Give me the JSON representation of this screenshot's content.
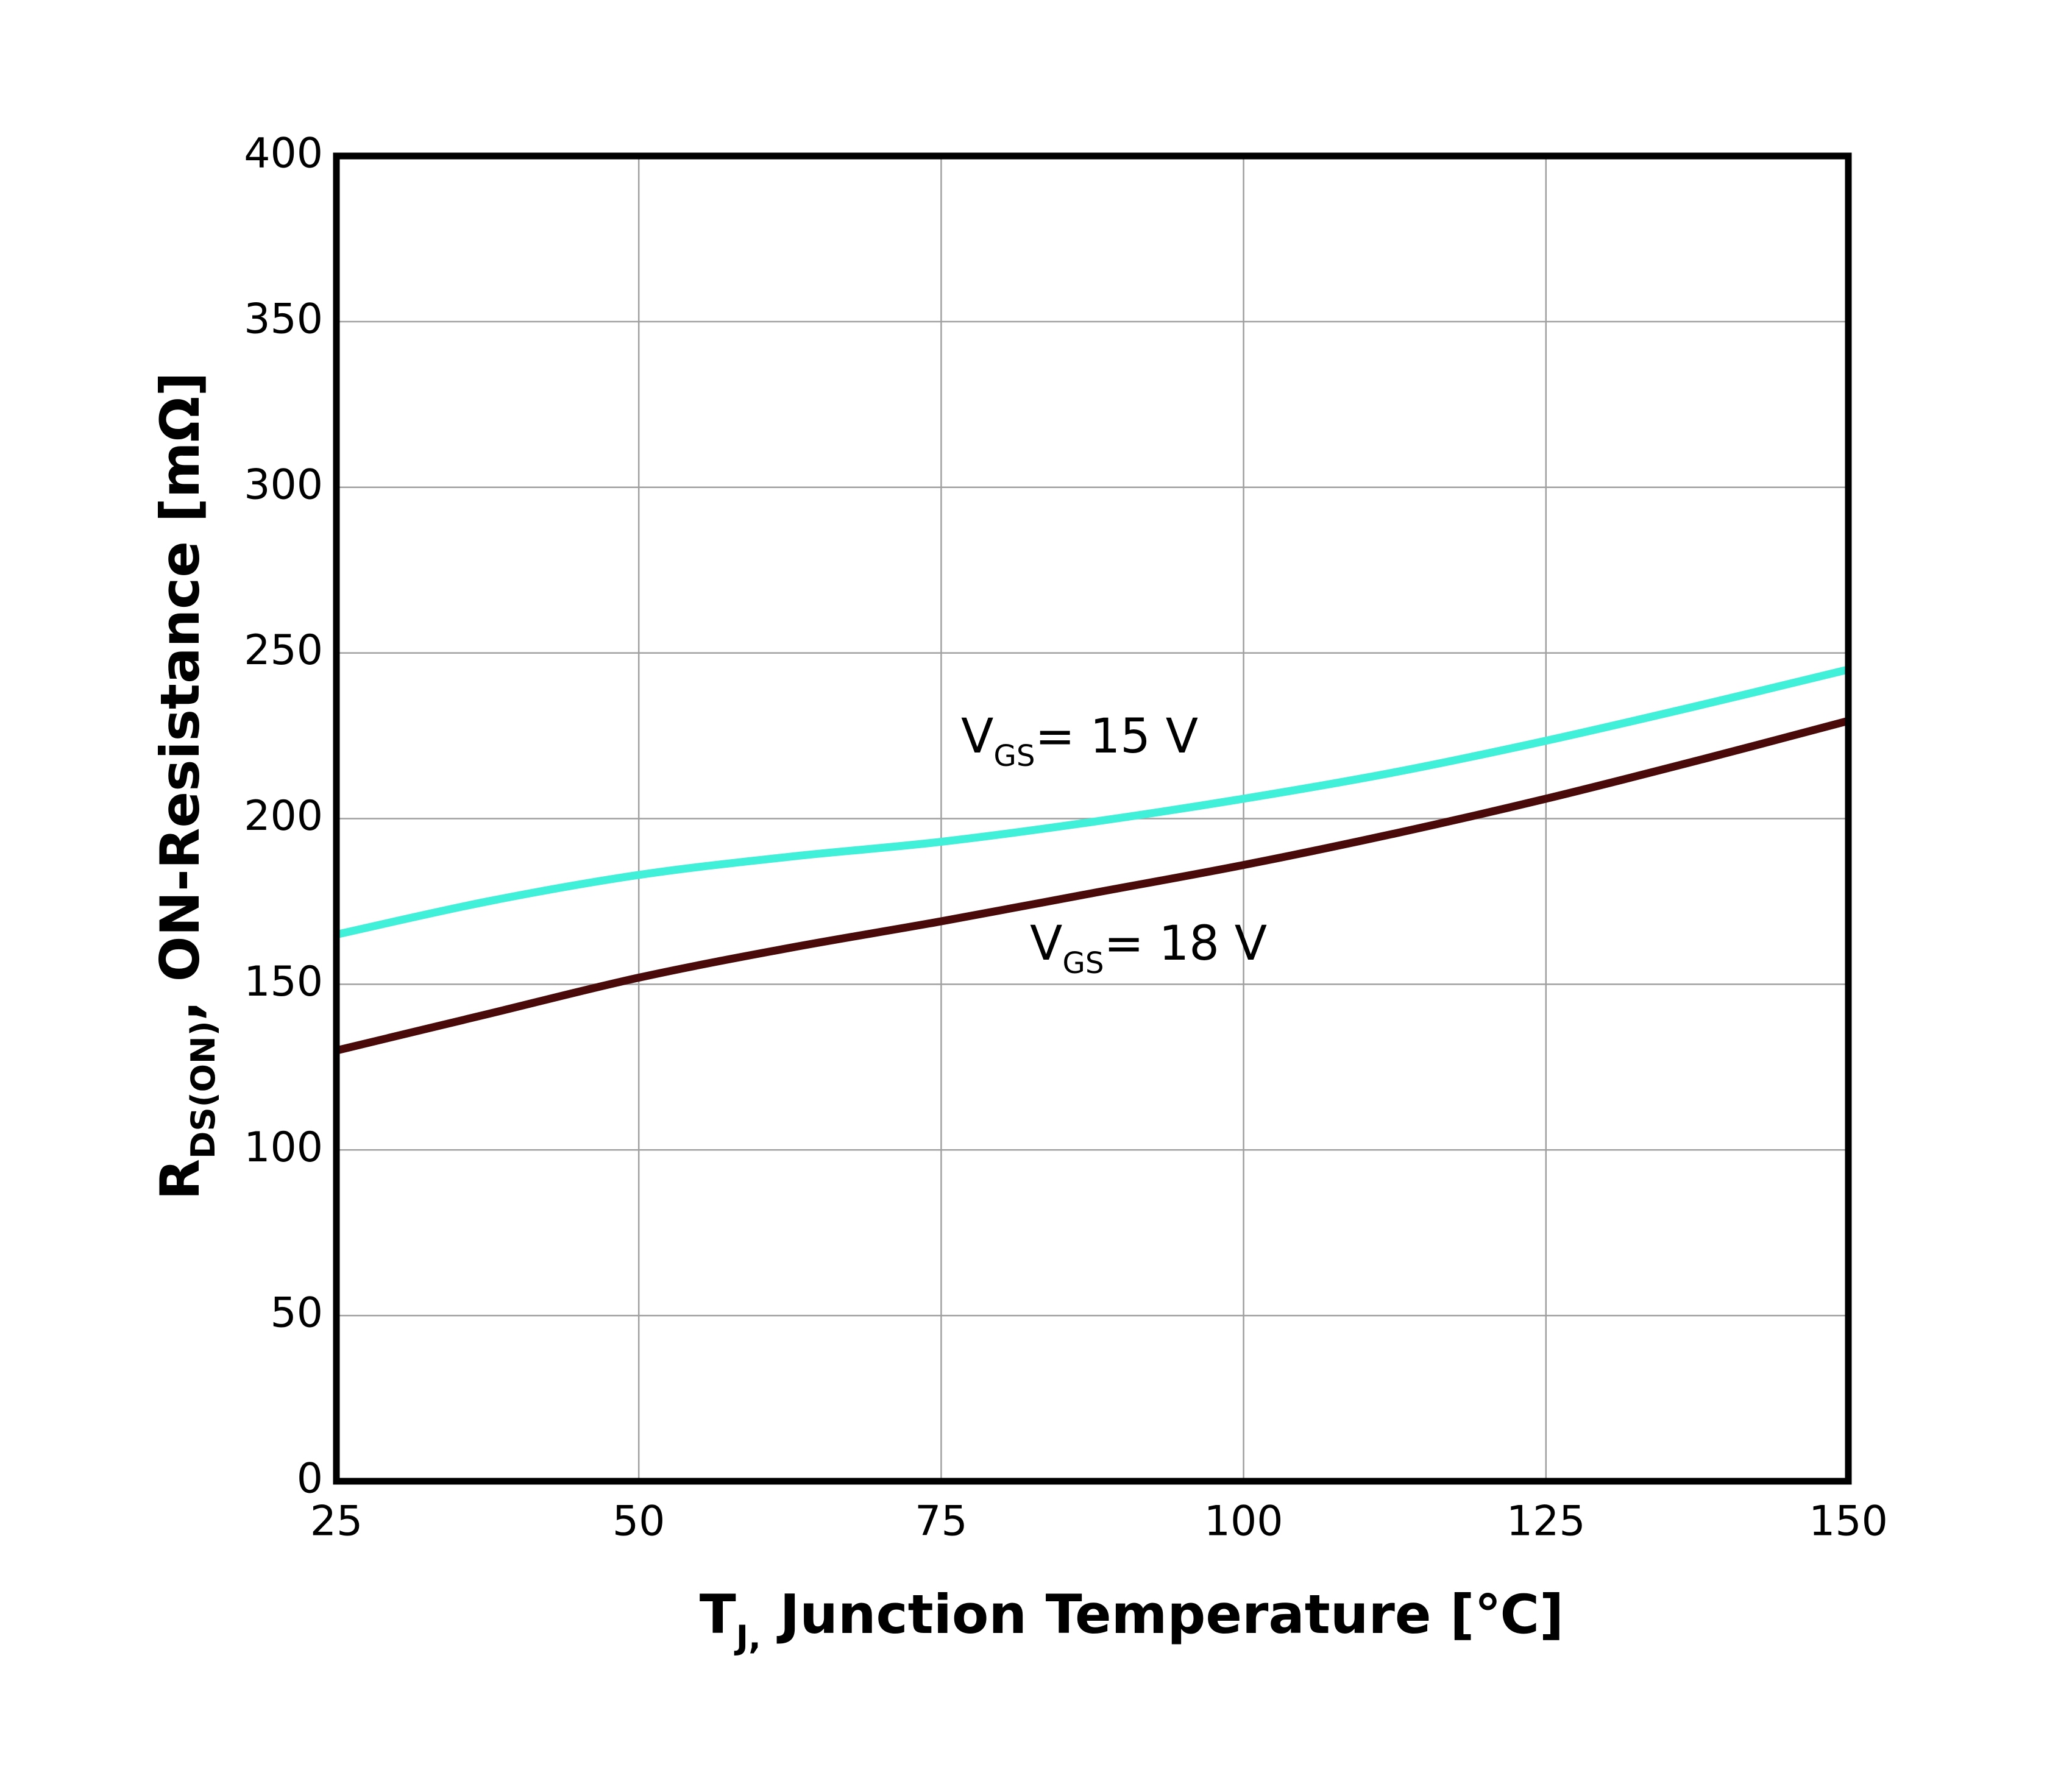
{
  "chart_data": {
    "type": "line",
    "ylabel": {
      "text": "R",
      "sub": "DS(ON)",
      "suffix": ", ON-Resistance [mΩ]"
    },
    "xlabel": {
      "text": "T",
      "sub": "J,",
      "suffix": " Junction Temperature [℃]"
    },
    "x": [
      25,
      37.5,
      50,
      62.5,
      75,
      87.5,
      100,
      112.5,
      125,
      137.5,
      150
    ],
    "series": [
      {
        "color": "#40f0d8",
        "values": [
          165,
          175,
          183,
          188.5,
          193,
          199,
          206,
          214,
          223.5,
          234,
          245
        ]
      },
      {
        "color": "#4a0a0a",
        "values": [
          130,
          141,
          152,
          161,
          169,
          177.5,
          186,
          195.5,
          206,
          217.5,
          229.5
        ]
      }
    ],
    "annotations": [
      {
        "text": "V",
        "sub": "GS",
        "suffix": "= 15 V"
      },
      {
        "text": "V",
        "sub": "GS",
        "suffix": "= 18 V"
      }
    ],
    "xlim": [
      25,
      150
    ],
    "xticks": [
      25,
      50,
      75,
      100,
      125,
      150
    ],
    "ylim": [
      0,
      400
    ],
    "yticks": [
      0,
      50,
      100,
      150,
      200,
      250,
      300,
      350,
      400
    ],
    "grid": true
  }
}
